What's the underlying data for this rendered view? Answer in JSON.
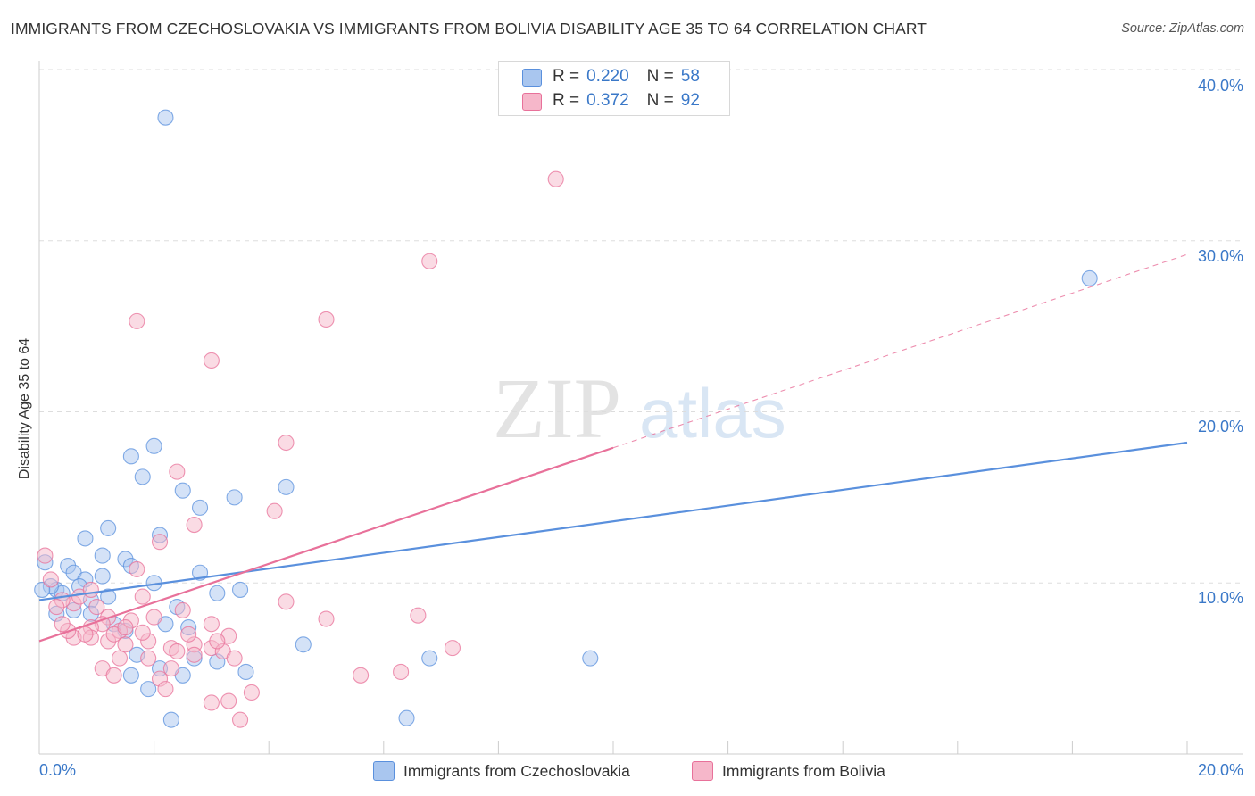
{
  "title": "IMMIGRANTS FROM CZECHOSLOVAKIA VS IMMIGRANTS FROM BOLIVIA DISABILITY AGE 35 TO 64 CORRELATION CHART",
  "source": "Source: ZipAtlas.com",
  "watermark": {
    "zip": "ZIP",
    "atlas": "atlas"
  },
  "legend_top": {
    "rows": [
      {
        "r_label": "R =",
        "r_value": "0.220",
        "n_label": "N =",
        "n_value": "58",
        "color": "#a9c6ef"
      },
      {
        "r_label": "R =",
        "r_value": "0.372",
        "n_label": "N =",
        "n_value": "92",
        "color": "#f6b7ca"
      }
    ]
  },
  "chart_data": {
    "type": "scatter",
    "title": "IMMIGRANTS FROM CZECHOSLOVAKIA VS IMMIGRANTS FROM BOLIVIA DISABILITY AGE 35 TO 64 CORRELATION CHART",
    "xlabel": "",
    "ylabel": "Disability Age 35 to 64",
    "xlim": [
      0,
      20
    ],
    "ylim": [
      0,
      40
    ],
    "x_tick_labels": [
      "0.0%",
      "20.0%"
    ],
    "y_ticks": [
      10,
      20,
      30,
      40
    ],
    "y_tick_labels": [
      "10.0%",
      "20.0%",
      "30.0%",
      "40.0%"
    ],
    "grid": true,
    "series": [
      {
        "name": "Immigrants from Czechoslovakia",
        "color": "#5a90dd",
        "fill": "#a9c6ef",
        "trend": {
          "x0": 0,
          "y0": 9.0,
          "x1": 20,
          "y1": 18.2,
          "solid_to": 20
        },
        "points": [
          [
            2.2,
            37.2
          ],
          [
            18.3,
            27.8
          ],
          [
            1.6,
            17.4
          ],
          [
            2.0,
            18.0
          ],
          [
            1.8,
            16.2
          ],
          [
            2.5,
            15.4
          ],
          [
            3.4,
            15.0
          ],
          [
            4.3,
            15.6
          ],
          [
            2.8,
            14.4
          ],
          [
            2.1,
            12.8
          ],
          [
            1.2,
            13.2
          ],
          [
            0.8,
            12.6
          ],
          [
            1.1,
            11.6
          ],
          [
            1.5,
            11.4
          ],
          [
            1.6,
            11.0
          ],
          [
            0.5,
            11.0
          ],
          [
            0.6,
            10.6
          ],
          [
            1.1,
            10.4
          ],
          [
            0.8,
            10.2
          ],
          [
            2.0,
            10.0
          ],
          [
            2.8,
            10.6
          ],
          [
            0.3,
            9.6
          ],
          [
            0.4,
            9.4
          ],
          [
            0.2,
            9.8
          ],
          [
            1.2,
            9.2
          ],
          [
            0.9,
            9.0
          ],
          [
            3.5,
            9.6
          ],
          [
            3.1,
            9.4
          ],
          [
            0.6,
            8.4
          ],
          [
            2.4,
            8.6
          ],
          [
            0.9,
            8.2
          ],
          [
            0.3,
            8.2
          ],
          [
            1.3,
            7.6
          ],
          [
            2.2,
            7.6
          ],
          [
            1.5,
            7.2
          ],
          [
            2.6,
            7.4
          ],
          [
            4.6,
            6.4
          ],
          [
            1.7,
            5.8
          ],
          [
            2.7,
            5.6
          ],
          [
            3.1,
            5.4
          ],
          [
            3.6,
            4.8
          ],
          [
            2.1,
            5.0
          ],
          [
            1.6,
            4.6
          ],
          [
            6.8,
            5.6
          ],
          [
            9.6,
            5.6
          ],
          [
            1.9,
            3.8
          ],
          [
            2.5,
            4.6
          ],
          [
            2.3,
            2.0
          ],
          [
            6.4,
            2.1
          ],
          [
            0.1,
            11.2
          ],
          [
            0.05,
            9.6
          ],
          [
            0.7,
            9.8
          ]
        ]
      },
      {
        "name": "Immigrants from Bolivia",
        "color": "#e8719a",
        "fill": "#f6b7ca",
        "trend": {
          "x0": 0,
          "y0": 6.6,
          "x1": 20,
          "y1": 29.2,
          "solid_to": 10.0
        },
        "points": [
          [
            9.0,
            33.6
          ],
          [
            6.8,
            28.8
          ],
          [
            1.7,
            25.3
          ],
          [
            5.0,
            25.4
          ],
          [
            3.0,
            23.0
          ],
          [
            4.3,
            18.2
          ],
          [
            2.4,
            16.5
          ],
          [
            4.1,
            14.2
          ],
          [
            2.7,
            13.4
          ],
          [
            2.1,
            12.4
          ],
          [
            1.7,
            10.8
          ],
          [
            1.8,
            9.2
          ],
          [
            4.3,
            8.9
          ],
          [
            6.6,
            8.1
          ],
          [
            5.0,
            7.9
          ],
          [
            7.2,
            6.2
          ],
          [
            2.5,
            8.4
          ],
          [
            3.0,
            7.6
          ],
          [
            3.3,
            6.9
          ],
          [
            3.0,
            6.2
          ],
          [
            1.2,
            8.0
          ],
          [
            1.1,
            7.6
          ],
          [
            1.4,
            7.2
          ],
          [
            1.6,
            7.8
          ],
          [
            0.9,
            7.4
          ],
          [
            1.2,
            6.6
          ],
          [
            0.9,
            6.8
          ],
          [
            1.5,
            6.4
          ],
          [
            0.6,
            6.8
          ],
          [
            2.3,
            6.2
          ],
          [
            1.9,
            6.6
          ],
          [
            2.7,
            6.4
          ],
          [
            3.2,
            6.0
          ],
          [
            1.4,
            5.6
          ],
          [
            1.9,
            5.6
          ],
          [
            2.7,
            5.8
          ],
          [
            3.4,
            5.6
          ],
          [
            2.3,
            5.0
          ],
          [
            1.1,
            5.0
          ],
          [
            1.3,
            4.6
          ],
          [
            2.1,
            4.4
          ],
          [
            2.2,
            3.8
          ],
          [
            5.6,
            4.6
          ],
          [
            6.3,
            4.8
          ],
          [
            3.3,
            3.1
          ],
          [
            3.7,
            3.6
          ],
          [
            3.0,
            3.0
          ],
          [
            3.5,
            2.0
          ],
          [
            0.6,
            8.8
          ],
          [
            0.7,
            9.2
          ],
          [
            0.4,
            9.0
          ],
          [
            0.2,
            10.2
          ],
          [
            0.1,
            11.6
          ],
          [
            0.3,
            8.6
          ],
          [
            0.5,
            7.2
          ],
          [
            1.0,
            8.6
          ],
          [
            1.3,
            7.0
          ],
          [
            1.8,
            7.1
          ],
          [
            2.0,
            8.0
          ],
          [
            2.6,
            7.0
          ],
          [
            0.9,
            9.6
          ],
          [
            0.8,
            7.0
          ],
          [
            1.5,
            7.4
          ],
          [
            0.4,
            7.6
          ],
          [
            2.4,
            6.0
          ],
          [
            3.1,
            6.6
          ]
        ]
      }
    ]
  },
  "legend_bottom": [
    {
      "label": "Immigrants from Czechoslovakia",
      "color": "#a9c6ef"
    },
    {
      "label": "Immigrants from Bolivia",
      "color": "#f6b7ca"
    }
  ]
}
